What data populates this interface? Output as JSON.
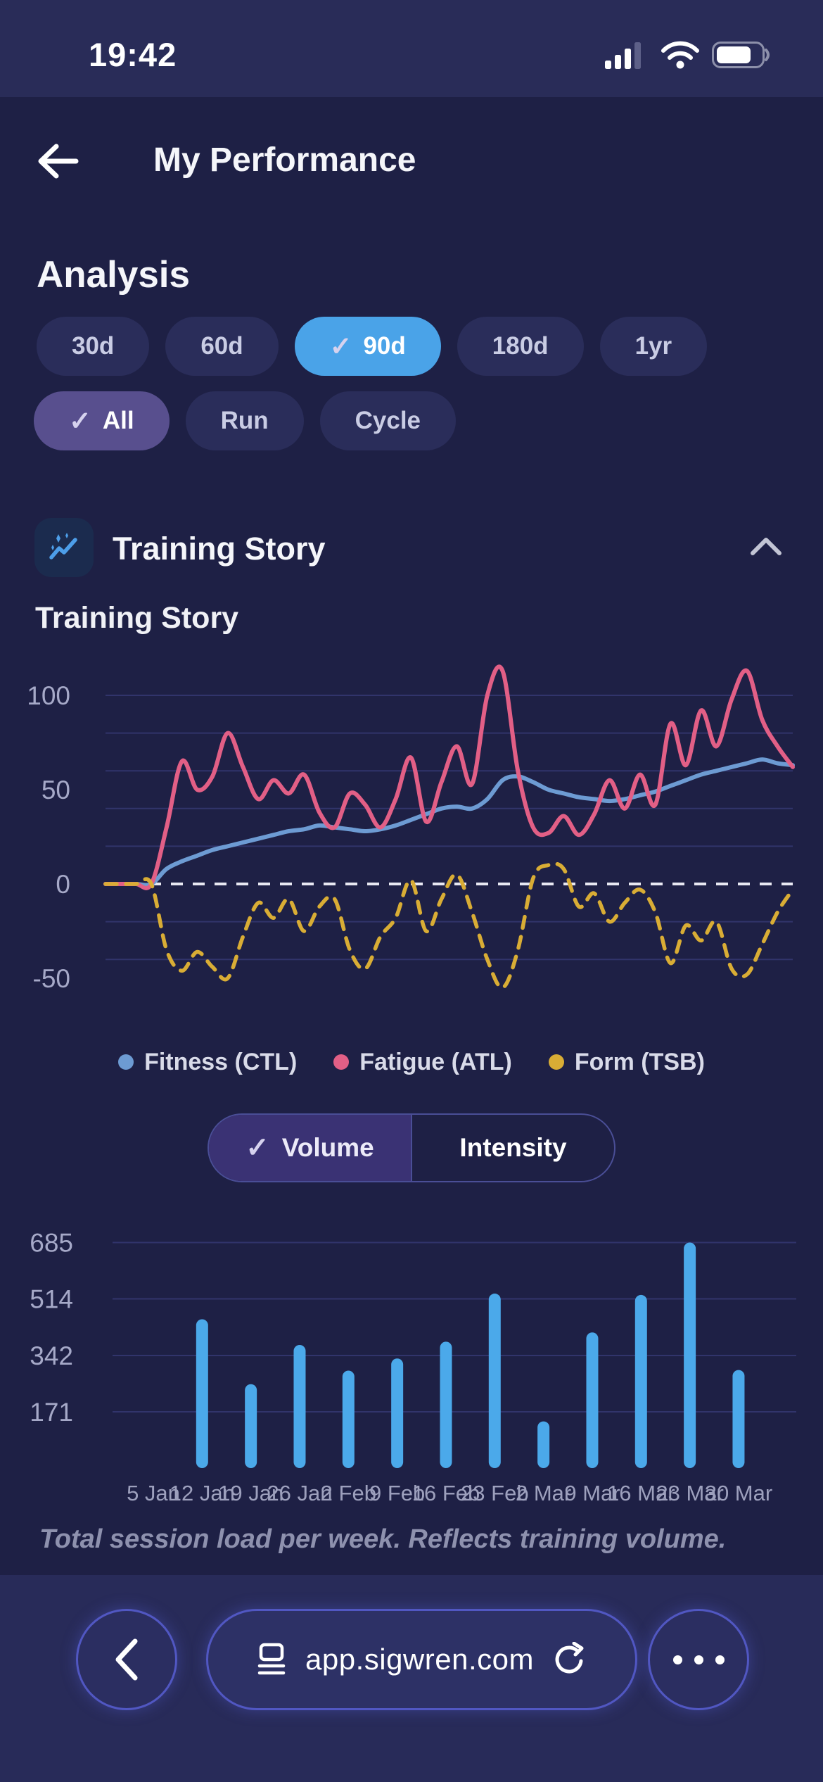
{
  "status_bar": {
    "time": "19:42",
    "signal_bars_filled": 3,
    "signal_bars_total": 4,
    "battery_percent_visual": 75
  },
  "header": {
    "title": "My Performance"
  },
  "analysis": {
    "heading": "Analysis",
    "period_chips": [
      {
        "label": "30d",
        "selected": false
      },
      {
        "label": "60d",
        "selected": false
      },
      {
        "label": "90d",
        "selected": true
      },
      {
        "label": "180d",
        "selected": false
      },
      {
        "label": "1yr",
        "selected": false
      }
    ],
    "sport_chips": [
      {
        "label": "All",
        "selected": true
      },
      {
        "label": "Run",
        "selected": false
      },
      {
        "label": "Cycle",
        "selected": false
      }
    ]
  },
  "section": {
    "title": "Training Story",
    "icon": "sparkle-trend-icon"
  },
  "chart_card": {
    "title": "Training Story"
  },
  "toggle": {
    "options": [
      "Volume",
      "Intensity"
    ],
    "selected": "Volume"
  },
  "browser": {
    "url": "app.sigwren.com"
  },
  "colors": {
    "bg_main": "#1e2045",
    "bg_chrome": "#292c58",
    "chip_bg": "#2a2d5a",
    "chip_selected_blue": "#4aa3e8",
    "chip_selected_purple": "#584f8e",
    "check": "#d6d2ee",
    "grid": "#31346b",
    "zero_line": "#e8e8f2",
    "axis_text": "#a6a9c8",
    "bar_blue": "#4ba9ea",
    "line_blue": "#6d9bd3",
    "line_pink": "#e25f86",
    "line_yellow": "#d9ad35"
  },
  "chart_data": [
    {
      "type": "line",
      "title": "Training Story",
      "x_days": [
        0,
        2,
        4,
        6,
        8,
        10,
        12,
        14,
        16,
        18,
        20,
        22,
        24,
        26,
        28,
        30,
        32,
        34,
        36,
        38,
        40,
        42,
        44,
        46,
        48,
        50,
        52,
        54,
        56,
        58,
        60,
        62,
        64,
        66,
        68,
        70,
        72,
        74,
        76,
        78,
        80,
        82,
        84,
        86,
        88,
        90
      ],
      "series": [
        {
          "name": "Fitness (CTL)",
          "color": "#6d9bd3",
          "style": "solid",
          "values": [
            0,
            0,
            0,
            0,
            8,
            12,
            15,
            18,
            20,
            22,
            24,
            26,
            28,
            29,
            31,
            30,
            29,
            28,
            29,
            31,
            34,
            37,
            40,
            41,
            40,
            45,
            55,
            57,
            54,
            50,
            48,
            46,
            45,
            44,
            45,
            47,
            49,
            52,
            55,
            58,
            60,
            62,
            64,
            66,
            64,
            63
          ]
        },
        {
          "name": "Fatigue (ATL)",
          "color": "#e25f86",
          "style": "solid",
          "values": [
            0,
            0,
            0,
            0,
            30,
            65,
            50,
            57,
            80,
            62,
            45,
            55,
            48,
            58,
            38,
            30,
            48,
            42,
            30,
            45,
            67,
            33,
            54,
            73,
            53,
            100,
            113,
            60,
            30,
            27,
            36,
            26,
            37,
            55,
            40,
            58,
            42,
            85,
            63,
            92,
            73,
            98,
            113,
            87,
            73,
            62
          ]
        },
        {
          "name": "Form (TSB)",
          "color": "#d9ad35",
          "style": "dashed",
          "values": [
            0,
            0,
            0,
            0,
            -35,
            -46,
            -36,
            -44,
            -50,
            -28,
            -10,
            -18,
            -8,
            -25,
            -12,
            -8,
            -35,
            -45,
            -28,
            -18,
            2,
            -25,
            -8,
            5,
            -15,
            -40,
            -55,
            -35,
            3,
            10,
            8,
            -12,
            -5,
            -20,
            -10,
            -3,
            -15,
            -42,
            -22,
            -30,
            -20,
            -45,
            -48,
            -32,
            -15,
            -3
          ]
        }
      ],
      "ylim": [
        -62,
        114
      ],
      "yticks": [
        100,
        50,
        0,
        -50
      ],
      "gridline_values": [
        100,
        80,
        60,
        40,
        20,
        -20,
        -40
      ],
      "zero_line_dashed": true,
      "legend_position": "bottom",
      "legend": [
        "Fitness (CTL)",
        "Fatigue (ATL)",
        "Form (TSB)"
      ]
    },
    {
      "type": "bar",
      "categories": [
        "5 Jan",
        "12 Jan",
        "19 Jan",
        "26 Jan",
        "2 Feb",
        "9 Feb",
        "16 Feb",
        "23 Feb",
        "2 Mar",
        "9 Mar",
        "16 Mar",
        "23 Mar",
        "30 Mar"
      ],
      "values": [
        0,
        452,
        255,
        374,
        296,
        333,
        384,
        530,
        142,
        412,
        526,
        685,
        298
      ],
      "yticks": [
        171,
        342,
        514,
        685
      ],
      "ylim": [
        0,
        731
      ],
      "bar_color": "#4ba9ea",
      "caption": "Total session load per week. Reflects training volume."
    }
  ]
}
